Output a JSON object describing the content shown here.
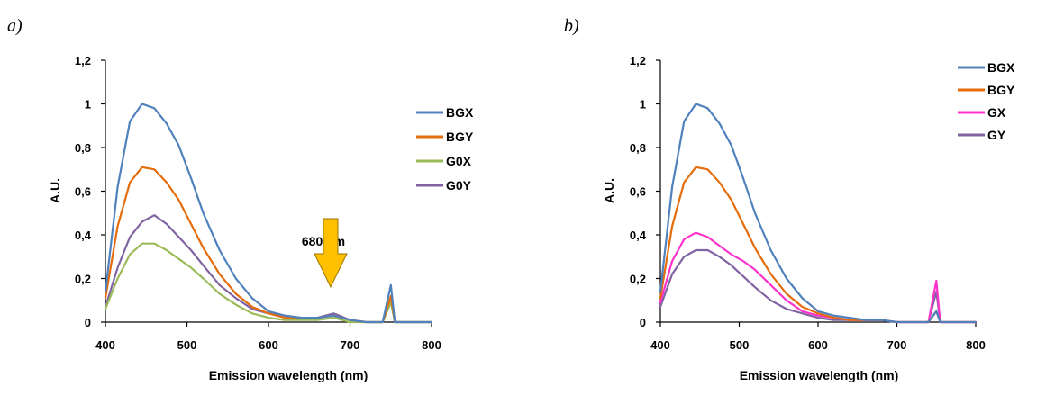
{
  "chart_data": [
    {
      "type": "line",
      "panel_label": "a)",
      "title": "",
      "xlabel": "Emission wavelength  (nm)",
      "ylabel": "A.U.",
      "xlim": [
        400,
        800
      ],
      "ylim": [
        0,
        1.2
      ],
      "x_ticks": [
        "400",
        "500",
        "600",
        "700",
        "800"
      ],
      "y_ticks": [
        "0",
        "0,2",
        "0,4",
        "0,6",
        "0,8",
        "1",
        "1,2"
      ],
      "grid": false,
      "legend_position": "right",
      "annotation": {
        "text": "680 nm",
        "x": 680,
        "color": "#FFC000"
      },
      "series": [
        {
          "name": "BGX",
          "color": "#4F81BD",
          "x": [
            400,
            415,
            430,
            445,
            460,
            475,
            490,
            505,
            520,
            540,
            560,
            580,
            600,
            620,
            640,
            660,
            680,
            700,
            720,
            740,
            750,
            755,
            760,
            780,
            800
          ],
          "y": [
            0.14,
            0.62,
            0.92,
            1.0,
            0.98,
            0.91,
            0.81,
            0.66,
            0.5,
            0.33,
            0.2,
            0.11,
            0.05,
            0.03,
            0.02,
            0.02,
            0.03,
            0.01,
            0.0,
            0.0,
            0.17,
            0.0,
            0.0,
            0.0,
            0.0
          ]
        },
        {
          "name": "BGY",
          "color": "#E46C0A",
          "x": [
            400,
            415,
            430,
            445,
            460,
            475,
            490,
            505,
            520,
            540,
            560,
            580,
            600,
            620,
            640,
            660,
            680,
            700,
            720,
            740,
            750,
            755,
            760,
            780,
            800
          ],
          "y": [
            0.11,
            0.44,
            0.64,
            0.71,
            0.7,
            0.64,
            0.56,
            0.45,
            0.34,
            0.22,
            0.13,
            0.07,
            0.04,
            0.02,
            0.02,
            0.02,
            0.03,
            0.01,
            0.0,
            0.0,
            0.12,
            0.0,
            0.0,
            0.0,
            0.0
          ]
        },
        {
          "name": "G0X",
          "color": "#9BBB59",
          "x": [
            400,
            415,
            430,
            445,
            460,
            475,
            490,
            505,
            520,
            540,
            560,
            580,
            600,
            620,
            640,
            660,
            680,
            700,
            720,
            740,
            750,
            755,
            760,
            780,
            800
          ],
          "y": [
            0.06,
            0.2,
            0.31,
            0.36,
            0.36,
            0.33,
            0.29,
            0.25,
            0.2,
            0.13,
            0.08,
            0.04,
            0.02,
            0.01,
            0.01,
            0.01,
            0.02,
            0.0,
            0.0,
            0.0,
            0.09,
            0.0,
            0.0,
            0.0,
            0.0
          ]
        },
        {
          "name": "G0Y",
          "color": "#8064A2",
          "x": [
            400,
            415,
            430,
            445,
            460,
            475,
            490,
            505,
            520,
            540,
            560,
            580,
            600,
            620,
            640,
            660,
            680,
            700,
            720,
            740,
            750,
            755,
            760,
            780,
            800
          ],
          "y": [
            0.07,
            0.25,
            0.39,
            0.46,
            0.49,
            0.45,
            0.39,
            0.33,
            0.26,
            0.17,
            0.11,
            0.06,
            0.04,
            0.03,
            0.02,
            0.02,
            0.04,
            0.01,
            0.0,
            0.0,
            0.11,
            0.0,
            0.0,
            0.0,
            0.0
          ]
        }
      ]
    },
    {
      "type": "line",
      "panel_label": "b)",
      "title": "",
      "xlabel": "Emission wavelength  (nm)",
      "ylabel": "A.U.",
      "xlim": [
        400,
        800
      ],
      "ylim": [
        0,
        1.2
      ],
      "x_ticks": [
        "400",
        "500",
        "600",
        "700",
        "800"
      ],
      "y_ticks": [
        "0",
        "0,2",
        "0,4",
        "0,6",
        "0,8",
        "1",
        "1,2"
      ],
      "grid": false,
      "legend_position": "top-right",
      "series": [
        {
          "name": "BGX",
          "color": "#4F81BD",
          "x": [
            400,
            415,
            430,
            445,
            460,
            475,
            490,
            505,
            520,
            540,
            560,
            580,
            600,
            620,
            640,
            660,
            680,
            700,
            720,
            740,
            750,
            755,
            760,
            780,
            800
          ],
          "y": [
            0.14,
            0.62,
            0.92,
            1.0,
            0.98,
            0.91,
            0.81,
            0.66,
            0.5,
            0.33,
            0.2,
            0.11,
            0.05,
            0.03,
            0.02,
            0.01,
            0.01,
            0.0,
            0.0,
            0.0,
            0.05,
            0.0,
            0.0,
            0.0,
            0.0
          ]
        },
        {
          "name": "BGY",
          "color": "#E46C0A",
          "x": [
            400,
            415,
            430,
            445,
            460,
            475,
            490,
            505,
            520,
            540,
            560,
            580,
            600,
            620,
            640,
            660,
            680,
            700,
            720,
            740,
            750,
            755,
            760,
            780,
            800
          ],
          "y": [
            0.11,
            0.44,
            0.64,
            0.71,
            0.7,
            0.64,
            0.56,
            0.45,
            0.34,
            0.22,
            0.13,
            0.07,
            0.04,
            0.02,
            0.01,
            0.01,
            0.01,
            0.0,
            0.0,
            0.0,
            0.05,
            0.0,
            0.0,
            0.0,
            0.0
          ]
        },
        {
          "name": "GX",
          "color": "#FF33CC",
          "x": [
            400,
            415,
            430,
            445,
            460,
            475,
            490,
            505,
            520,
            540,
            560,
            580,
            600,
            620,
            640,
            660,
            680,
            700,
            720,
            740,
            750,
            755,
            760,
            780,
            800
          ],
          "y": [
            0.09,
            0.28,
            0.38,
            0.41,
            0.39,
            0.35,
            0.31,
            0.28,
            0.24,
            0.17,
            0.1,
            0.05,
            0.03,
            0.02,
            0.01,
            0.01,
            0.01,
            0.0,
            0.0,
            0.0,
            0.19,
            0.0,
            0.0,
            0.0,
            0.0
          ]
        },
        {
          "name": "GY",
          "color": "#8064A2",
          "x": [
            400,
            415,
            430,
            445,
            460,
            475,
            490,
            505,
            520,
            540,
            560,
            580,
            600,
            620,
            640,
            660,
            680,
            700,
            720,
            740,
            750,
            755,
            760,
            780,
            800
          ],
          "y": [
            0.07,
            0.22,
            0.3,
            0.33,
            0.33,
            0.3,
            0.26,
            0.21,
            0.16,
            0.1,
            0.06,
            0.04,
            0.02,
            0.01,
            0.01,
            0.01,
            0.01,
            0.0,
            0.0,
            0.0,
            0.14,
            0.0,
            0.0,
            0.0,
            0.0
          ]
        }
      ]
    }
  ]
}
